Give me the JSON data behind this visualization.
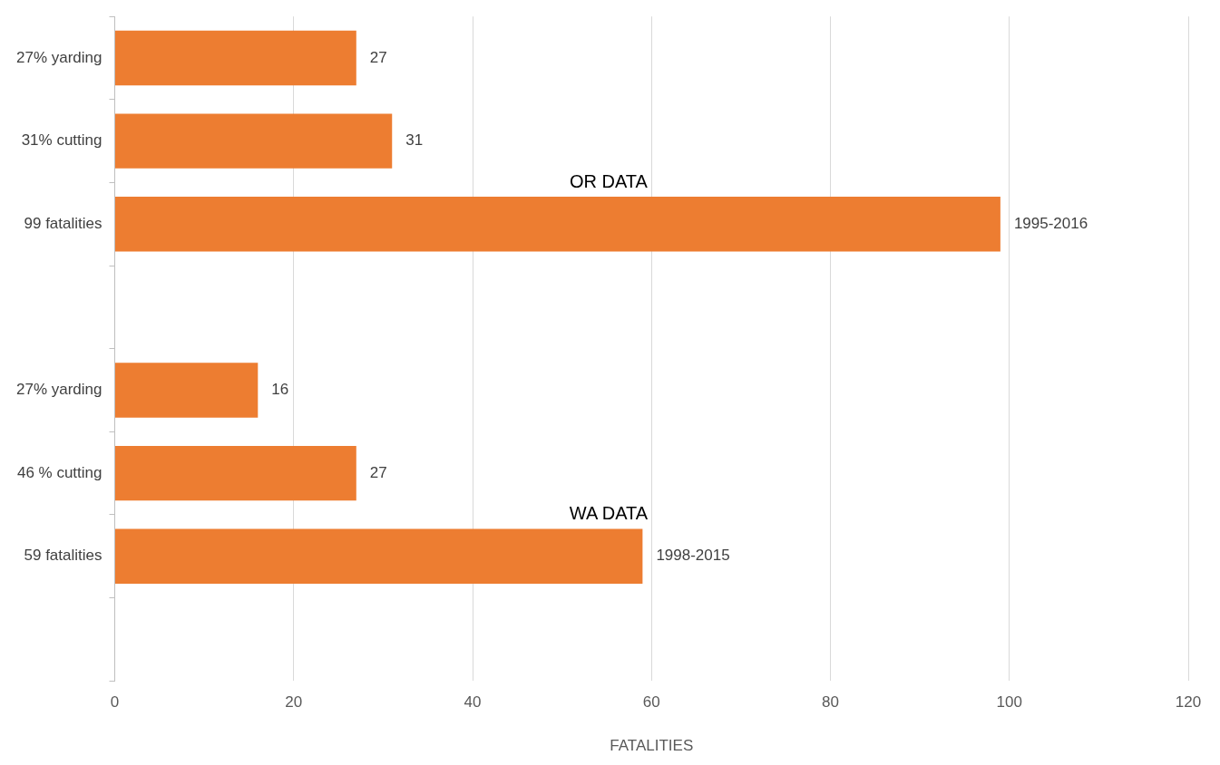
{
  "chart_data": {
    "type": "bar",
    "orientation": "horizontal",
    "categories": [
      "27% yarding",
      "31% cutting",
      "99 fatalities",
      null,
      "27% yarding",
      "46 % cutting",
      "59 fatalities",
      null
    ],
    "values": [
      27,
      31,
      99,
      null,
      16,
      27,
      59,
      null
    ],
    "value_labels": [
      "27",
      "31",
      "1995-2016",
      null,
      "16",
      "27",
      "1998-2015",
      null
    ],
    "color": "#ed7d31",
    "xlabel": "FATALITIES",
    "xlim": [
      0,
      120
    ],
    "xticks": [
      0,
      20,
      40,
      60,
      80,
      100,
      120
    ],
    "grid": "x",
    "legend": false,
    "annotations": [
      "OR DATA",
      "WA DATA"
    ]
  }
}
